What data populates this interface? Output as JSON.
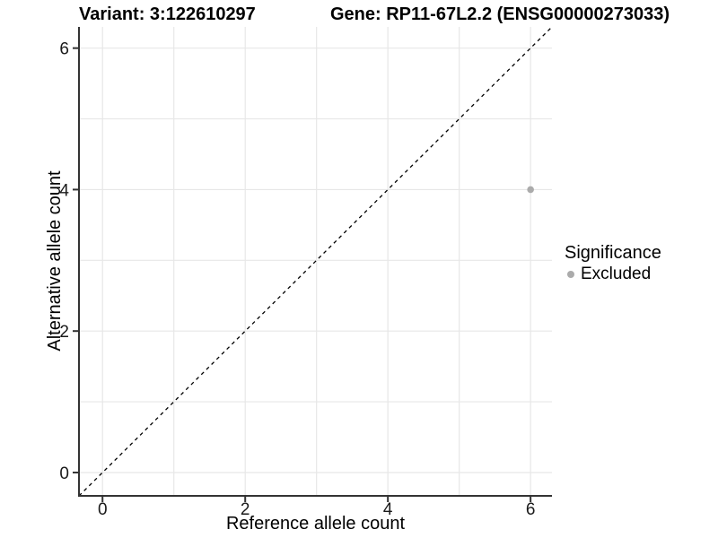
{
  "chart_data": {
    "type": "scatter",
    "title_left": "Variant: 3:122610297",
    "title_right": "Gene: RP11-67L2.2 (ENSG00000273033)",
    "xlabel": "Reference allele count",
    "ylabel": "Alternative allele count",
    "xlim": [
      -0.33,
      6.3
    ],
    "ylim": [
      -0.33,
      6.3
    ],
    "x_ticks": [
      0,
      2,
      4,
      6
    ],
    "y_ticks": [
      0,
      2,
      4,
      6
    ],
    "x_minor_gridlines": [
      1,
      3,
      5
    ],
    "y_minor_gridlines": [
      1,
      3,
      5
    ],
    "grid": true,
    "legend_position": "right",
    "legend_title": "Significance",
    "series": [
      {
        "name": "Excluded",
        "color": "#ababab",
        "points": [
          {
            "x": 6,
            "y": 4
          }
        ]
      }
    ],
    "reference_line": {
      "type": "identity y=x",
      "style": "dashed",
      "color": "#000000"
    }
  },
  "colors": {
    "background": "#ffffff",
    "gridline": "#e7e7e7",
    "axis_line": "#333333",
    "tick_text": "#1a1a1a",
    "point": "#ababab"
  }
}
